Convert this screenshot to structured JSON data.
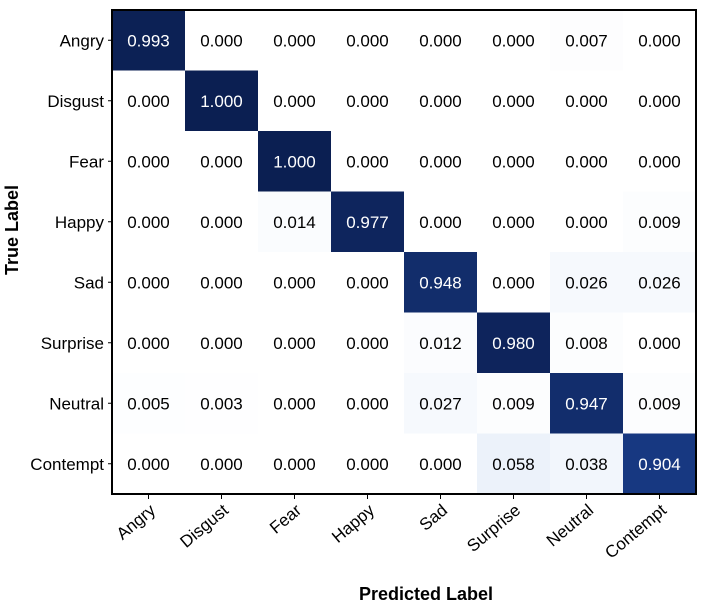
{
  "chart_data": {
    "type": "heatmap",
    "title": "",
    "xlabel": "Predicted Label",
    "ylabel": "True Label",
    "x_categories": [
      "Angry",
      "Disgust",
      "Fear",
      "Happy",
      "Sad",
      "Surprise",
      "Neutral",
      "Contempt"
    ],
    "y_categories": [
      "Angry",
      "Disgust",
      "Fear",
      "Happy",
      "Sad",
      "Surprise",
      "Neutral",
      "Contempt"
    ],
    "values": [
      [
        "0.993",
        "0.000",
        "0.000",
        "0.000",
        "0.000",
        "0.000",
        "0.007",
        "0.000"
      ],
      [
        "0.000",
        "1.000",
        "0.000",
        "0.000",
        "0.000",
        "0.000",
        "0.000",
        "0.000"
      ],
      [
        "0.000",
        "0.000",
        "1.000",
        "0.000",
        "0.000",
        "0.000",
        "0.000",
        "0.000"
      ],
      [
        "0.000",
        "0.000",
        "0.014",
        "0.977",
        "0.000",
        "0.000",
        "0.000",
        "0.009"
      ],
      [
        "0.000",
        "0.000",
        "0.000",
        "0.000",
        "0.948",
        "0.000",
        "0.026",
        "0.026"
      ],
      [
        "0.000",
        "0.000",
        "0.000",
        "0.000",
        "0.012",
        "0.980",
        "0.008",
        "0.000"
      ],
      [
        "0.005",
        "0.003",
        "0.000",
        "0.000",
        "0.027",
        "0.009",
        "0.947",
        "0.009"
      ],
      [
        "0.000",
        "0.000",
        "0.000",
        "0.000",
        "0.000",
        "0.058",
        "0.038",
        "0.904"
      ]
    ],
    "value_range": [
      0,
      1
    ],
    "colormap": "Blues",
    "grid": false,
    "legend": "none"
  }
}
